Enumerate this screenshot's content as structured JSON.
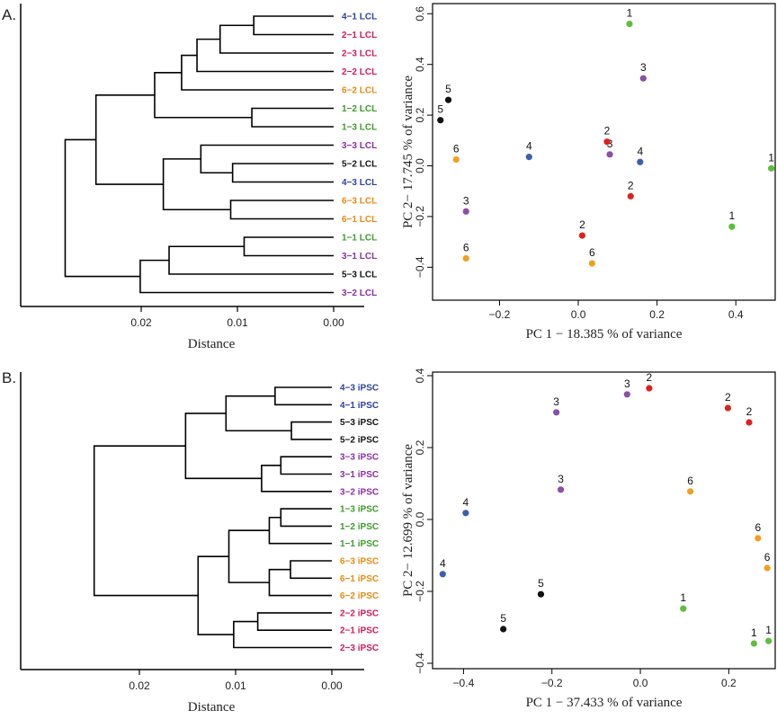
{
  "colors": {
    "black": "#111111",
    "red": "#e02020",
    "green": "#5cbf3a",
    "purple": "#8a4fa8",
    "blue": "#3a5fb0",
    "orange": "#f0a020",
    "lbl_black": "#111111",
    "lbl_red": "#d11a5a",
    "lbl_green": "#3d9a2a",
    "lbl_purple": "#8b2fa0",
    "lbl_blue": "#2d3fa0",
    "lbl_orange": "#e88a10"
  },
  "panels": [
    {
      "label": "A."
    },
    {
      "label": "B."
    }
  ],
  "chart_data": [
    {
      "type": "dendrogram",
      "panel": "A.",
      "xlabel": "Distance",
      "xticks": [
        0.02,
        0.01,
        0.0
      ],
      "tick_labels": [
        "0.02",
        "0.01",
        "0.00"
      ],
      "leaves": [
        {
          "label": "4−1 LCL",
          "color": "blue"
        },
        {
          "label": "2−1 LCL",
          "color": "red"
        },
        {
          "label": "2−3 LCL",
          "color": "red"
        },
        {
          "label": "2−2 LCL",
          "color": "red"
        },
        {
          "label": "6−2 LCL",
          "color": "orange"
        },
        {
          "label": "1−2 LCL",
          "color": "green"
        },
        {
          "label": "1−3 LCL",
          "color": "green"
        },
        {
          "label": "3−3 LCL",
          "color": "purple"
        },
        {
          "label": "5−2 LCL",
          "color": "black"
        },
        {
          "label": "4−3 LCL",
          "color": "blue"
        },
        {
          "label": "6−3 LCL",
          "color": "orange"
        },
        {
          "label": "6−1 LCL",
          "color": "orange"
        },
        {
          "label": "1−1 LCL",
          "color": "green"
        },
        {
          "label": "3−1 LCL",
          "color": "purple"
        },
        {
          "label": "5−3 LCL",
          "color": "black"
        },
        {
          "label": "3−2 LCL",
          "color": "purple"
        }
      ],
      "merges": [
        {
          "a": [
            0
          ],
          "b": [
            1
          ],
          "h": 0.0083
        },
        {
          "a": [
            0,
            1
          ],
          "b": [
            2
          ],
          "h": 0.0118
        },
        {
          "a": [
            0,
            1,
            2
          ],
          "b": [
            3
          ],
          "h": 0.0142
        },
        {
          "a": [
            0,
            1,
            2,
            3
          ],
          "b": [
            4
          ],
          "h": 0.0158
        },
        {
          "a": [
            5
          ],
          "b": [
            6
          ],
          "h": 0.0085
        },
        {
          "a": [
            0,
            1,
            2,
            3,
            4
          ],
          "b": [
            5,
            6
          ],
          "h": 0.0186
        },
        {
          "a": [
            8
          ],
          "b": [
            9
          ],
          "h": 0.0105
        },
        {
          "a": [
            7
          ],
          "b": [
            8,
            9
          ],
          "h": 0.0138
        },
        {
          "a": [
            10
          ],
          "b": [
            11
          ],
          "h": 0.0107
        },
        {
          "a": [
            7,
            8,
            9
          ],
          "b": [
            10,
            11
          ],
          "h": 0.0177
        },
        {
          "a": [
            0,
            1,
            2,
            3,
            4,
            5,
            6
          ],
          "b": [
            7,
            8,
            9,
            10,
            11
          ],
          "h": 0.0247
        },
        {
          "a": [
            12
          ],
          "b": [
            13
          ],
          "h": 0.0093
        },
        {
          "a": [
            12,
            13
          ],
          "b": [
            14
          ],
          "h": 0.0171
        },
        {
          "a": [
            12,
            13,
            14
          ],
          "b": [
            15
          ],
          "h": 0.0201
        },
        {
          "a": [
            0,
            1,
            2,
            3,
            4,
            5,
            6,
            7,
            8,
            9,
            10,
            11
          ],
          "b": [
            12,
            13,
            14,
            15
          ],
          "h": 0.0279
        }
      ]
    },
    {
      "type": "scatter",
      "panel": "A.",
      "xlabel": "PC 1 − 18.385 % of variance",
      "ylabel": "PC 2− 17.745 % of variance",
      "xlim": [
        -0.37,
        0.5
      ],
      "ylim": [
        -0.53,
        0.64
      ],
      "xticks": [
        -0.2,
        0.0,
        0.2,
        0.4
      ],
      "xtick_labels": [
        "−0.2",
        "0.0",
        "0.2",
        "0.4"
      ],
      "yticks": [
        -0.4,
        -0.2,
        0.0,
        0.2,
        0.4,
        0.6
      ],
      "ytick_labels": [
        "−0.4",
        "−0.2",
        "0.0",
        "0.2",
        "0.4",
        "0.6"
      ],
      "points": [
        {
          "label": "1",
          "color": "green",
          "x": 0.13,
          "y": 0.56
        },
        {
          "label": "1",
          "color": "green",
          "x": 0.49,
          "y": -0.01
        },
        {
          "label": "1",
          "color": "green",
          "x": 0.39,
          "y": -0.24
        },
        {
          "label": "3",
          "color": "purple",
          "x": 0.165,
          "y": 0.345
        },
        {
          "label": "3",
          "color": "purple",
          "x": 0.08,
          "y": 0.045
        },
        {
          "label": "3",
          "color": "purple",
          "x": -0.285,
          "y": -0.18
        },
        {
          "label": "5",
          "color": "black",
          "x": -0.33,
          "y": 0.26
        },
        {
          "label": "5",
          "color": "black",
          "x": -0.35,
          "y": 0.18
        },
        {
          "label": "2",
          "color": "red",
          "x": 0.073,
          "y": 0.095
        },
        {
          "label": "2",
          "color": "red",
          "x": 0.133,
          "y": -0.12
        },
        {
          "label": "2",
          "color": "red",
          "x": 0.01,
          "y": -0.275
        },
        {
          "label": "4",
          "color": "blue",
          "x": -0.125,
          "y": 0.035
        },
        {
          "label": "4",
          "color": "blue",
          "x": 0.157,
          "y": 0.015
        },
        {
          "label": "6",
          "color": "orange",
          "x": -0.31,
          "y": 0.025
        },
        {
          "label": "6",
          "color": "orange",
          "x": -0.285,
          "y": -0.365
        },
        {
          "label": "6",
          "color": "orange",
          "x": 0.035,
          "y": -0.385
        }
      ]
    },
    {
      "type": "dendrogram",
      "panel": "B.",
      "xlabel": "Distance",
      "xticks": [
        0.02,
        0.01,
        0.0
      ],
      "tick_labels": [
        "0.02",
        "0.01",
        "0.00"
      ],
      "leaves": [
        {
          "label": "4−3 iPSC",
          "color": "blue"
        },
        {
          "label": "4−1 iPSC",
          "color": "blue"
        },
        {
          "label": "5−3 iPSC",
          "color": "black"
        },
        {
          "label": "5−2 iPSC",
          "color": "black"
        },
        {
          "label": "3−3 iPSC",
          "color": "purple"
        },
        {
          "label": "3−1 iPSC",
          "color": "purple"
        },
        {
          "label": "3−2 iPSC",
          "color": "purple"
        },
        {
          "label": "1−3 iPSC",
          "color": "green"
        },
        {
          "label": "1−2 iPSC",
          "color": "green"
        },
        {
          "label": "1−1 iPSC",
          "color": "green"
        },
        {
          "label": "6−3 iPSC",
          "color": "orange"
        },
        {
          "label": "6−1 iPSC",
          "color": "orange"
        },
        {
          "label": "6−2 iPSC",
          "color": "orange"
        },
        {
          "label": "2−2 iPSC",
          "color": "red"
        },
        {
          "label": "2−1 iPSC",
          "color": "red"
        },
        {
          "label": "2−3 iPSC",
          "color": "red"
        }
      ],
      "merges": [
        {
          "a": [
            0
          ],
          "b": [
            1
          ],
          "h": 0.0059
        },
        {
          "a": [
            2
          ],
          "b": [
            3
          ],
          "h": 0.0042
        },
        {
          "a": [
            0,
            1
          ],
          "b": [
            2,
            3
          ],
          "h": 0.011
        },
        {
          "a": [
            4
          ],
          "b": [
            5
          ],
          "h": 0.0053
        },
        {
          "a": [
            4,
            5
          ],
          "b": [
            6
          ],
          "h": 0.0073
        },
        {
          "a": [
            0,
            1,
            2,
            3
          ],
          "b": [
            4,
            5,
            6
          ],
          "h": 0.0152
        },
        {
          "a": [
            7
          ],
          "b": [
            8
          ],
          "h": 0.0053
        },
        {
          "a": [
            7,
            8
          ],
          "b": [
            9
          ],
          "h": 0.0065
        },
        {
          "a": [
            10
          ],
          "b": [
            11
          ],
          "h": 0.0043
        },
        {
          "a": [
            10,
            11
          ],
          "b": [
            12
          ],
          "h": 0.0065
        },
        {
          "a": [
            7,
            8,
            9
          ],
          "b": [
            10,
            11,
            12
          ],
          "h": 0.0107
        },
        {
          "a": [
            13
          ],
          "b": [
            14
          ],
          "h": 0.0077
        },
        {
          "a": [
            13,
            14
          ],
          "b": [
            15
          ],
          "h": 0.0102
        },
        {
          "a": [
            7,
            8,
            9,
            10,
            11,
            12
          ],
          "b": [
            13,
            14,
            15
          ],
          "h": 0.0139
        },
        {
          "a": [
            0,
            1,
            2,
            3,
            4,
            5,
            6
          ],
          "b": [
            7,
            8,
            9,
            10,
            11,
            12,
            13,
            14,
            15
          ],
          "h": 0.0247
        }
      ]
    },
    {
      "type": "scatter",
      "panel": "B.",
      "xlabel": "PC 1 − 37.433 % of variance",
      "ylabel": "PC 2− 12.699 % of variance",
      "xlim": [
        -0.47,
        0.305
      ],
      "ylim": [
        -0.415,
        0.41
      ],
      "xticks": [
        -0.4,
        -0.2,
        0.0,
        0.2
      ],
      "xtick_labels": [
        "−0.4",
        "−0.2",
        "0.0",
        "0.2"
      ],
      "yticks": [
        -0.4,
        -0.2,
        0.0,
        0.2,
        0.4
      ],
      "ytick_labels": [
        "−0.4",
        "−0.2",
        "0.0",
        "0.2",
        "0.4"
      ],
      "points": [
        {
          "label": "2",
          "color": "red",
          "x": 0.02,
          "y": 0.365
        },
        {
          "label": "2",
          "color": "red",
          "x": 0.198,
          "y": 0.31
        },
        {
          "label": "2",
          "color": "red",
          "x": 0.246,
          "y": 0.27
        },
        {
          "label": "3",
          "color": "purple",
          "x": -0.03,
          "y": 0.348
        },
        {
          "label": "3",
          "color": "purple",
          "x": -0.19,
          "y": 0.298
        },
        {
          "label": "3",
          "color": "purple",
          "x": -0.18,
          "y": 0.083
        },
        {
          "label": "6",
          "color": "orange",
          "x": 0.113,
          "y": 0.078
        },
        {
          "label": "6",
          "color": "orange",
          "x": 0.266,
          "y": -0.052
        },
        {
          "label": "6",
          "color": "orange",
          "x": 0.287,
          "y": -0.135
        },
        {
          "label": "4",
          "color": "blue",
          "x": -0.395,
          "y": 0.018
        },
        {
          "label": "4",
          "color": "blue",
          "x": -0.447,
          "y": -0.152
        },
        {
          "label": "5",
          "color": "black",
          "x": -0.225,
          "y": -0.208
        },
        {
          "label": "5",
          "color": "black",
          "x": -0.31,
          "y": -0.305
        },
        {
          "label": "1",
          "color": "green",
          "x": 0.097,
          "y": -0.248
        },
        {
          "label": "1",
          "color": "green",
          "x": 0.257,
          "y": -0.345
        },
        {
          "label": "1",
          "color": "green",
          "x": 0.29,
          "y": -0.338
        }
      ]
    }
  ]
}
